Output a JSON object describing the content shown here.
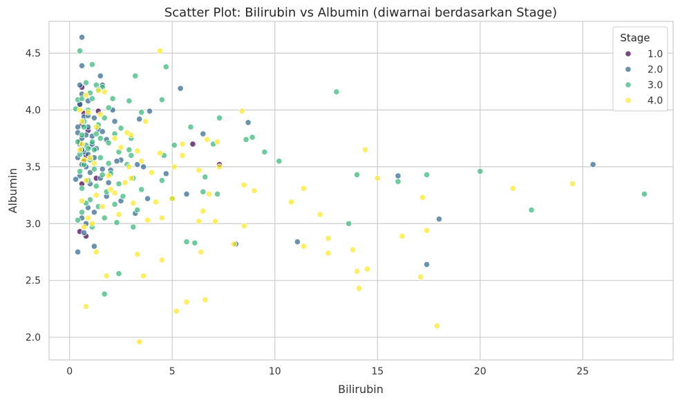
{
  "chart_data": {
    "type": "scatter",
    "title": "Scatter Plot: Bilirubin vs Albumin (diwarnai berdasarkan Stage)",
    "xlabel": "Bilirubin",
    "ylabel": "Albumin",
    "xlim": [
      -1.0,
      29.4
    ],
    "ylim": [
      1.8,
      4.78
    ],
    "xticks": [
      0,
      5,
      10,
      15,
      20,
      25
    ],
    "xtick_labels": [
      "0",
      "5",
      "10",
      "15",
      "20",
      "25"
    ],
    "yticks": [
      2.0,
      2.5,
      3.0,
      3.5,
      4.0,
      4.5
    ],
    "ytick_labels": [
      "2.0",
      "2.5",
      "3.0",
      "3.5",
      "4.0",
      "4.5"
    ],
    "grid": true,
    "legend": {
      "title": "Stage",
      "placement": "top-right"
    },
    "series": [
      {
        "name": "1.0",
        "color": "#440154",
        "points": [
          [
            0.6,
            4.2
          ],
          [
            0.5,
            4.05
          ],
          [
            0.7,
            3.97
          ],
          [
            0.6,
            3.87
          ],
          [
            0.5,
            3.72
          ],
          [
            0.8,
            3.6
          ],
          [
            0.7,
            3.55
          ],
          [
            1.3,
            3.4
          ],
          [
            1.4,
            3.99
          ],
          [
            0.5,
            2.93
          ],
          [
            0.8,
            2.89
          ],
          [
            6.0,
            3.7
          ],
          [
            7.3,
            3.52
          ],
          [
            0.9,
            3.82
          ],
          [
            0.6,
            3.35
          ]
        ]
      },
      {
        "name": "2.0",
        "color": "#31688e",
        "points": [
          [
            0.6,
            4.64
          ],
          [
            0.6,
            4.39
          ],
          [
            1.5,
            4.3
          ],
          [
            0.5,
            4.22
          ],
          [
            1.6,
            4.22
          ],
          [
            0.6,
            4.14
          ],
          [
            0.9,
            4.08
          ],
          [
            0.5,
            4.05
          ],
          [
            2.1,
            4.0
          ],
          [
            3.9,
            3.99
          ],
          [
            0.7,
            3.94
          ],
          [
            1.2,
            3.93
          ],
          [
            3.4,
            3.92
          ],
          [
            2.2,
            3.9
          ],
          [
            0.4,
            3.85
          ],
          [
            0.9,
            3.85
          ],
          [
            1.4,
            3.83
          ],
          [
            1.6,
            3.81
          ],
          [
            0.4,
            3.8
          ],
          [
            0.8,
            3.78
          ],
          [
            1.1,
            3.77
          ],
          [
            0.6,
            3.75
          ],
          [
            1.8,
            3.74
          ],
          [
            0.5,
            3.7
          ],
          [
            1.0,
            3.68
          ],
          [
            1.3,
            3.66
          ],
          [
            0.7,
            3.63
          ],
          [
            0.9,
            3.61
          ],
          [
            0.4,
            3.58
          ],
          [
            1.2,
            3.58
          ],
          [
            2.5,
            3.56
          ],
          [
            0.6,
            3.52
          ],
          [
            3.3,
            3.52
          ],
          [
            0.8,
            3.5
          ],
          [
            1.6,
            3.48
          ],
          [
            2.0,
            3.47
          ],
          [
            1.0,
            3.45
          ],
          [
            0.5,
            3.42
          ],
          [
            0.3,
            3.39
          ],
          [
            1.9,
            3.36
          ],
          [
            1.0,
            3.35
          ],
          [
            3.6,
            3.5
          ],
          [
            4.7,
            3.44
          ],
          [
            2.3,
            3.55
          ],
          [
            5.7,
            3.26
          ],
          [
            3.8,
            3.22
          ],
          [
            2.5,
            3.2
          ],
          [
            1.8,
            3.24
          ],
          [
            1.2,
            3.1
          ],
          [
            0.9,
            3.14
          ],
          [
            3.2,
            3.09
          ],
          [
            0.6,
            3.05
          ],
          [
            0.4,
            2.75
          ],
          [
            1.2,
            2.8
          ],
          [
            0.7,
            2.92
          ],
          [
            5.4,
            4.19
          ],
          [
            6.5,
            3.79
          ],
          [
            8.7,
            3.89
          ],
          [
            8.1,
            2.82
          ],
          [
            11.1,
            2.84
          ],
          [
            16.0,
            3.42
          ],
          [
            18.0,
            3.04
          ],
          [
            17.4,
            2.64
          ],
          [
            25.5,
            3.52
          ],
          [
            0.8,
            3.0
          ],
          [
            1.5,
            3.4
          ],
          [
            0.6,
            3.65
          ],
          [
            1.1,
            3.7
          ],
          [
            0.9,
            3.95
          ]
        ]
      },
      {
        "name": "3.0",
        "color": "#35b779",
        "points": [
          [
            0.5,
            4.52
          ],
          [
            1.1,
            4.4
          ],
          [
            3.2,
            4.3
          ],
          [
            4.7,
            4.38
          ],
          [
            0.8,
            4.24
          ],
          [
            1.3,
            4.22
          ],
          [
            1.6,
            4.2
          ],
          [
            1.0,
            4.15
          ],
          [
            1.4,
            4.18
          ],
          [
            0.4,
            4.09
          ],
          [
            1.1,
            4.1
          ],
          [
            2.1,
            4.1
          ],
          [
            2.9,
            4.08
          ],
          [
            4.5,
            4.09
          ],
          [
            0.6,
            4.1
          ],
          [
            0.3,
            4.01
          ],
          [
            1.9,
            4.02
          ],
          [
            0.9,
            4.0
          ],
          [
            3.5,
            3.98
          ],
          [
            1.7,
            3.93
          ],
          [
            2.5,
            3.84
          ],
          [
            0.7,
            3.85
          ],
          [
            1.4,
            3.87
          ],
          [
            2.2,
            3.79
          ],
          [
            3.0,
            3.75
          ],
          [
            0.6,
            3.78
          ],
          [
            1.5,
            3.75
          ],
          [
            1.1,
            3.72
          ],
          [
            0.4,
            3.72
          ],
          [
            1.9,
            3.71
          ],
          [
            0.8,
            3.69
          ],
          [
            1.2,
            3.65
          ],
          [
            2.4,
            3.63
          ],
          [
            0.5,
            3.61
          ],
          [
            3.0,
            3.6
          ],
          [
            1.5,
            3.58
          ],
          [
            1.0,
            3.56
          ],
          [
            0.7,
            3.52
          ],
          [
            1.9,
            3.53
          ],
          [
            2.8,
            3.52
          ],
          [
            1.2,
            3.48
          ],
          [
            0.5,
            3.46
          ],
          [
            2.0,
            3.44
          ],
          [
            1.6,
            3.43
          ],
          [
            3.1,
            3.4
          ],
          [
            0.9,
            3.38
          ],
          [
            2.4,
            3.35
          ],
          [
            1.3,
            3.33
          ],
          [
            0.6,
            3.31
          ],
          [
            3.5,
            3.3
          ],
          [
            1.8,
            3.28
          ],
          [
            2.6,
            3.24
          ],
          [
            1.0,
            3.21
          ],
          [
            0.8,
            3.18
          ],
          [
            2.2,
            3.17
          ],
          [
            1.4,
            3.15
          ],
          [
            3.3,
            3.12
          ],
          [
            0.6,
            3.1
          ],
          [
            1.7,
            3.05
          ],
          [
            2.3,
            3.01
          ],
          [
            1.1,
            2.97
          ],
          [
            0.4,
            3.03
          ],
          [
            3.1,
            2.97
          ],
          [
            2.4,
            2.56
          ],
          [
            1.7,
            2.38
          ],
          [
            5.1,
            3.69
          ],
          [
            5.9,
            3.85
          ],
          [
            7.3,
            3.93
          ],
          [
            7.0,
            3.7
          ],
          [
            8.6,
            3.74
          ],
          [
            8.9,
            3.76
          ],
          [
            9.5,
            3.63
          ],
          [
            6.6,
            3.41
          ],
          [
            6.5,
            3.28
          ],
          [
            5.0,
            3.22
          ],
          [
            4.5,
            3.38
          ],
          [
            4.6,
            3.6
          ],
          [
            5.7,
            2.84
          ],
          [
            6.1,
            2.83
          ],
          [
            7.2,
            3.26
          ],
          [
            10.2,
            3.55
          ],
          [
            13.0,
            4.16
          ],
          [
            14.0,
            3.43
          ],
          [
            13.6,
            3.0
          ],
          [
            16.0,
            3.37
          ],
          [
            17.4,
            3.43
          ],
          [
            20.0,
            3.46
          ],
          [
            22.5,
            3.12
          ],
          [
            28.0,
            3.26
          ],
          [
            0.9,
            3.66
          ],
          [
            1.3,
            3.79
          ],
          [
            0.7,
            3.9
          ],
          [
            2.9,
            3.65
          ]
        ]
      },
      {
        "name": "4.0",
        "color": "#fde725",
        "points": [
          [
            4.4,
            4.52
          ],
          [
            1.4,
            4.17
          ],
          [
            1.7,
            4.16
          ],
          [
            0.8,
            4.13
          ],
          [
            0.5,
            4.0
          ],
          [
            0.9,
            3.98
          ],
          [
            1.5,
            3.96
          ],
          [
            3.7,
            3.9
          ],
          [
            1.3,
            3.85
          ],
          [
            2.8,
            3.8
          ],
          [
            3.0,
            3.78
          ],
          [
            2.2,
            3.75
          ],
          [
            5.5,
            3.7
          ],
          [
            0.6,
            3.7
          ],
          [
            2.5,
            3.67
          ],
          [
            6.7,
            3.74
          ],
          [
            7.2,
            3.72
          ],
          [
            3.3,
            3.64
          ],
          [
            4.4,
            3.62
          ],
          [
            5.5,
            3.6
          ],
          [
            1.0,
            3.58
          ],
          [
            0.7,
            3.56
          ],
          [
            3.5,
            3.55
          ],
          [
            2.9,
            3.5
          ],
          [
            5.1,
            3.5
          ],
          [
            6.3,
            3.47
          ],
          [
            7.3,
            3.5
          ],
          [
            4.0,
            3.45
          ],
          [
            1.9,
            3.42
          ],
          [
            3.0,
            3.4
          ],
          [
            0.8,
            3.38
          ],
          [
            2.7,
            3.36
          ],
          [
            8.5,
            3.34
          ],
          [
            9.0,
            3.29
          ],
          [
            11.4,
            3.31
          ],
          [
            6.8,
            3.26
          ],
          [
            2.2,
            3.27
          ],
          [
            1.3,
            3.25
          ],
          [
            0.6,
            3.2
          ],
          [
            4.2,
            3.19
          ],
          [
            3.1,
            3.18
          ],
          [
            5.0,
            3.22
          ],
          [
            1.6,
            3.15
          ],
          [
            6.5,
            3.11
          ],
          [
            2.4,
            3.08
          ],
          [
            0.9,
            3.05
          ],
          [
            3.8,
            3.03
          ],
          [
            4.5,
            3.05
          ],
          [
            6.3,
            3.02
          ],
          [
            7.1,
            3.02
          ],
          [
            1.1,
            3.0
          ],
          [
            0.7,
            2.97
          ],
          [
            8.5,
            2.98
          ],
          [
            10.8,
            3.19
          ],
          [
            12.2,
            3.08
          ],
          [
            12.6,
            2.87
          ],
          [
            11.4,
            2.8
          ],
          [
            8.0,
            2.82
          ],
          [
            6.4,
            2.75
          ],
          [
            12.6,
            2.74
          ],
          [
            13.8,
            2.77
          ],
          [
            14.0,
            2.58
          ],
          [
            14.5,
            2.6
          ],
          [
            14.1,
            2.43
          ],
          [
            4.5,
            2.68
          ],
          [
            3.3,
            2.73
          ],
          [
            1.3,
            2.75
          ],
          [
            1.8,
            2.54
          ],
          [
            3.6,
            2.54
          ],
          [
            5.7,
            2.31
          ],
          [
            6.6,
            2.33
          ],
          [
            5.2,
            2.23
          ],
          [
            0.8,
            2.27
          ],
          [
            3.4,
            1.96
          ],
          [
            17.9,
            2.1
          ],
          [
            17.1,
            2.53
          ],
          [
            17.2,
            3.23
          ],
          [
            16.2,
            2.89
          ],
          [
            17.4,
            2.94
          ],
          [
            15.0,
            3.4
          ],
          [
            14.4,
            3.65
          ],
          [
            21.6,
            3.31
          ],
          [
            24.5,
            3.35
          ],
          [
            8.4,
            3.99
          ],
          [
            0.5,
            3.65
          ],
          [
            1.2,
            3.53
          ],
          [
            2.0,
            3.3
          ],
          [
            0.6,
            3.9
          ]
        ]
      }
    ]
  }
}
